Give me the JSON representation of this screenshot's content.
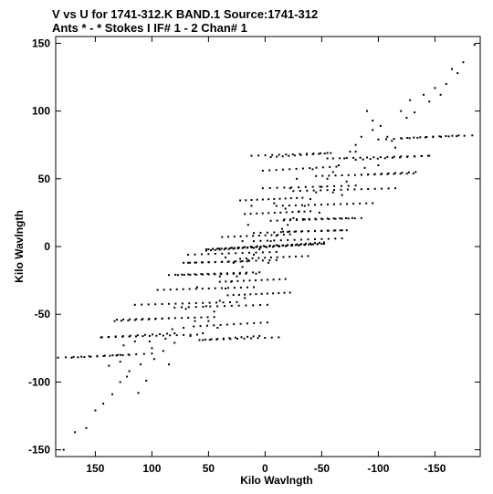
{
  "chart_data": {
    "type": "scatter",
    "title_line1": "V vs U for 1741-312.K BAND.1   Source:1741-312",
    "title_line2": "Ants * - *     Stokes I  IF# 1 - 2  Chan# 1",
    "xlabel": "Kilo Wavlngth",
    "ylabel": "Kilo Wavlngth",
    "xlim": [
      185,
      -190
    ],
    "ylim": [
      -155,
      155
    ],
    "xticks": [
      150,
      100,
      50,
      0,
      -50,
      -100,
      -150
    ],
    "xtick_labels": [
      "150",
      "100",
      "50",
      "0",
      "-50",
      "-100",
      "-150"
    ],
    "yticks": [
      150,
      100,
      50,
      0,
      -50,
      -100,
      -150
    ],
    "ytick_labels": [
      "150",
      "100",
      "50",
      "0",
      "-50",
      "-100",
      "-150"
    ],
    "grid": false,
    "marker_color": "#000000",
    "tracks": [
      {
        "u0": 22,
        "v0": 34,
        "u1": -33,
        "v1": 36,
        "n": 12
      },
      {
        "u0": 18,
        "v0": 24,
        "u1": -40,
        "v1": 26,
        "n": 12
      },
      {
        "u0": -17,
        "v0": 20,
        "u1": -77,
        "v1": 21,
        "n": 12
      },
      {
        "u0": -16,
        "v0": 11,
        "u1": -72,
        "v1": 12,
        "n": 11
      },
      {
        "u0": 38,
        "v0": 7,
        "u1": -22,
        "v1": 9,
        "n": 12
      },
      {
        "u0": 52,
        "v0": -2,
        "u1": -10,
        "v1": 1,
        "n": 12
      },
      {
        "u0": 68,
        "v0": -6,
        "u1": -10,
        "v1": -4,
        "n": 14
      },
      {
        "u0": 68,
        "v0": -12,
        "u1": -10,
        "v1": -10,
        "n": 14
      },
      {
        "u0": 85,
        "v0": -21,
        "u1": 5,
        "v1": -19,
        "n": 15
      },
      {
        "u0": 95,
        "v0": -32,
        "u1": 10,
        "v1": -30,
        "n": 16
      },
      {
        "u0": 115,
        "v0": -43,
        "u1": 25,
        "v1": -41,
        "n": 16
      },
      {
        "u0": 131,
        "v0": -54,
        "u1": 45,
        "v1": -52,
        "n": 16
      },
      {
        "u0": 144,
        "v0": -67,
        "u1": 60,
        "v1": -65,
        "n": 15
      },
      {
        "u0": 55,
        "v0": -69,
        "u1": -12,
        "v1": -67,
        "n": 12
      },
      {
        "u0": 171,
        "v0": -82,
        "u1": 120,
        "v1": -80,
        "n": 10
      },
      {
        "u0": -5,
        "v0": 66,
        "u1": -58,
        "v1": 69,
        "n": 11
      },
      {
        "u0": 2,
        "v0": 56,
        "u1": -63,
        "v1": 59,
        "n": 12
      },
      {
        "u0": 2,
        "v0": 43,
        "u1": -80,
        "v1": 45,
        "n": 14
      },
      {
        "u0": -80,
        "v0": 64,
        "u1": -145,
        "v1": 67,
        "n": 11
      },
      {
        "u0": -85,
        "v0": 53,
        "u1": -133,
        "v1": 55,
        "n": 9
      },
      {
        "u0": -100,
        "v0": 79,
        "u1": -183,
        "v1": 82,
        "n": 13
      },
      {
        "u0": 50,
        "v0": -2,
        "u1": 0,
        "v1": 0,
        "n": 14
      },
      {
        "u0": 0,
        "v0": 0,
        "u1": -52,
        "v1": 3,
        "n": 14
      }
    ],
    "diagonal_points": [
      [
        178,
        -150
      ],
      [
        168,
        -137
      ],
      [
        158,
        -134
      ],
      [
        150,
        -121
      ],
      [
        143,
        -116
      ],
      [
        135,
        -109
      ],
      [
        128,
        -100
      ],
      [
        122,
        -96
      ],
      [
        112,
        -108
      ],
      [
        120,
        -92
      ],
      [
        110,
        -87
      ],
      [
        105,
        -99
      ],
      [
        128,
        -85
      ],
      [
        138,
        -88
      ],
      [
        98,
        -83
      ],
      [
        100,
        -75
      ],
      [
        90,
        -77
      ],
      [
        85,
        -87
      ],
      [
        80,
        -71
      ],
      [
        72,
        -60
      ],
      [
        62,
        -55
      ],
      [
        55,
        -64
      ],
      [
        50,
        -55
      ],
      [
        45,
        -48
      ],
      [
        40,
        -40
      ],
      [
        35,
        -31
      ],
      [
        30,
        -26
      ],
      [
        25,
        -22
      ],
      [
        20,
        -15
      ],
      [
        15,
        -10
      ],
      [
        10,
        -6
      ],
      [
        5,
        -2
      ],
      [
        -5,
        4
      ],
      [
        -10,
        8
      ],
      [
        -15,
        13
      ],
      [
        -20,
        16
      ],
      [
        -25,
        21
      ],
      [
        -30,
        26
      ],
      [
        -35,
        30
      ],
      [
        -40,
        35
      ],
      [
        -45,
        40
      ],
      [
        -50,
        44
      ],
      [
        -55,
        50
      ],
      [
        -60,
        55
      ],
      [
        -65,
        60
      ],
      [
        -70,
        65
      ],
      [
        -75,
        70
      ],
      [
        -80,
        75
      ],
      [
        -85,
        81
      ],
      [
        -95,
        86
      ],
      [
        -102,
        89
      ],
      [
        -108,
        81
      ],
      [
        -112,
        78
      ],
      [
        -115,
        73
      ],
      [
        -120,
        100
      ],
      [
        -125,
        95
      ],
      [
        -132,
        99
      ],
      [
        -128,
        108
      ],
      [
        -140,
        112
      ],
      [
        -145,
        107
      ],
      [
        -150,
        117
      ],
      [
        -155,
        112
      ],
      [
        -160,
        120
      ],
      [
        -165,
        131
      ],
      [
        -170,
        128
      ],
      [
        -175,
        136
      ],
      [
        -185,
        149
      ],
      [
        -90,
        100
      ],
      [
        -95,
        93
      ],
      [
        -80,
        70
      ],
      [
        -55,
        65
      ],
      [
        -42,
        57
      ],
      [
        -28,
        50
      ],
      [
        -22,
        43
      ],
      [
        -8,
        32
      ],
      [
        12,
        30
      ],
      [
        15,
        16
      ],
      [
        20,
        4
      ],
      [
        35,
        -8
      ],
      [
        40,
        -22
      ],
      [
        60,
        -30
      ],
      [
        42,
        -60
      ],
      [
        52,
        -44
      ],
      [
        70,
        -46
      ],
      [
        82,
        -61
      ],
      [
        88,
        -68
      ],
      [
        115,
        -70
      ],
      [
        125,
        -73
      ],
      [
        130,
        -80
      ],
      [
        102,
        -70
      ],
      [
        66,
        -66
      ],
      [
        18,
        -38
      ],
      [
        8,
        -20
      ],
      [
        -3,
        -12
      ],
      [
        28,
        -12
      ],
      [
        -18,
        28
      ],
      [
        -35,
        20
      ],
      [
        -48,
        25
      ],
      [
        -60,
        40
      ],
      [
        -68,
        38
      ],
      [
        -72,
        48
      ],
      [
        -88,
        58
      ],
      [
        -100,
        60
      ]
    ]
  }
}
